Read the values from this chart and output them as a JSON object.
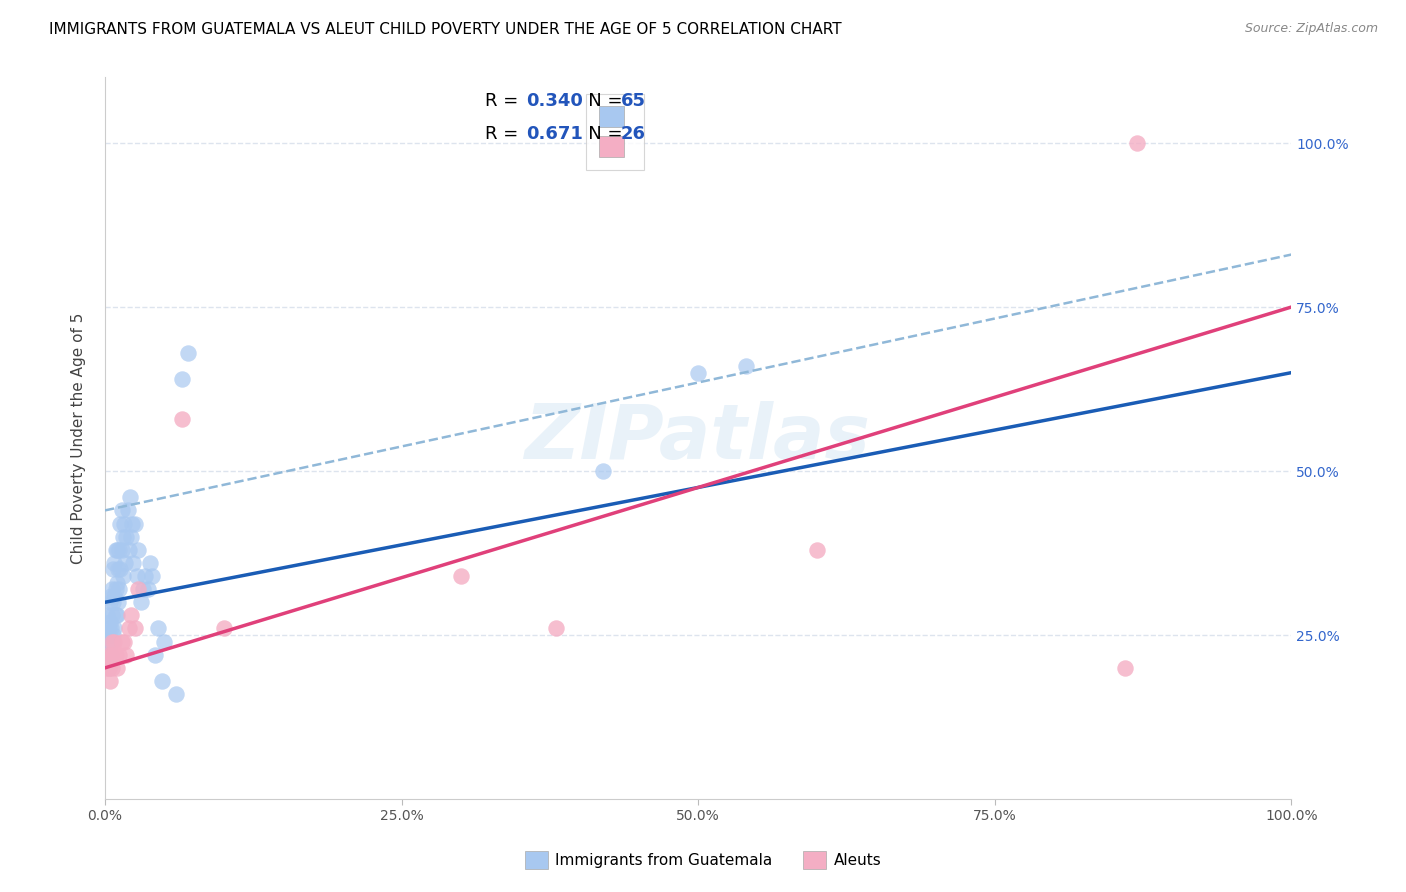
{
  "title": "IMMIGRANTS FROM GUATEMALA VS ALEUT CHILD POVERTY UNDER THE AGE OF 5 CORRELATION CHART",
  "source": "Source: ZipAtlas.com",
  "ylabel": "Child Poverty Under the Age of 5",
  "legend_label1": "Immigrants from Guatemala",
  "legend_label2": "Aleuts",
  "r1": 0.34,
  "n1": 65,
  "r2": 0.671,
  "n2": 26,
  "color_blue_scatter": "#a8c8f0",
  "color_pink_scatter": "#f4aec4",
  "color_blue_line": "#1a5cb5",
  "color_pink_line": "#e0407a",
  "color_dashed": "#90b8d8",
  "watermark": "ZIPatlas",
  "blue_x": [
    0.001,
    0.002,
    0.002,
    0.003,
    0.003,
    0.003,
    0.004,
    0.004,
    0.004,
    0.005,
    0.005,
    0.005,
    0.006,
    0.006,
    0.006,
    0.007,
    0.007,
    0.007,
    0.008,
    0.008,
    0.008,
    0.009,
    0.009,
    0.009,
    0.01,
    0.01,
    0.01,
    0.011,
    0.011,
    0.012,
    0.012,
    0.013,
    0.013,
    0.014,
    0.014,
    0.015,
    0.015,
    0.016,
    0.017,
    0.018,
    0.019,
    0.02,
    0.021,
    0.022,
    0.023,
    0.024,
    0.025,
    0.027,
    0.028,
    0.03,
    0.032,
    0.034,
    0.036,
    0.038,
    0.04,
    0.042,
    0.045,
    0.048,
    0.05,
    0.06,
    0.065,
    0.07,
    0.42,
    0.5,
    0.54
  ],
  "blue_y": [
    0.22,
    0.25,
    0.28,
    0.2,
    0.24,
    0.26,
    0.22,
    0.27,
    0.3,
    0.22,
    0.26,
    0.31,
    0.24,
    0.28,
    0.32,
    0.25,
    0.3,
    0.35,
    0.26,
    0.31,
    0.36,
    0.28,
    0.32,
    0.38,
    0.28,
    0.33,
    0.38,
    0.3,
    0.35,
    0.32,
    0.38,
    0.35,
    0.42,
    0.38,
    0.44,
    0.34,
    0.4,
    0.42,
    0.36,
    0.4,
    0.44,
    0.38,
    0.46,
    0.4,
    0.42,
    0.36,
    0.42,
    0.34,
    0.38,
    0.3,
    0.32,
    0.34,
    0.32,
    0.36,
    0.34,
    0.22,
    0.26,
    0.18,
    0.24,
    0.16,
    0.64,
    0.68,
    0.5,
    0.65,
    0.66
  ],
  "pink_x": [
    0.001,
    0.002,
    0.003,
    0.004,
    0.005,
    0.006,
    0.006,
    0.007,
    0.008,
    0.009,
    0.01,
    0.012,
    0.014,
    0.016,
    0.018,
    0.02,
    0.022,
    0.025,
    0.028,
    0.065,
    0.1,
    0.3,
    0.38,
    0.6,
    0.86,
    0.87
  ],
  "pink_y": [
    0.2,
    0.22,
    0.2,
    0.18,
    0.22,
    0.2,
    0.24,
    0.22,
    0.24,
    0.22,
    0.2,
    0.22,
    0.24,
    0.24,
    0.22,
    0.26,
    0.28,
    0.26,
    0.32,
    0.58,
    0.26,
    0.34,
    0.26,
    0.38,
    0.2,
    1.0
  ],
  "xlim": [
    0,
    1.0
  ],
  "ylim": [
    0,
    1.1
  ],
  "xticks": [
    0.0,
    0.25,
    0.5,
    0.75,
    1.0
  ],
  "xtick_labels": [
    "0.0%",
    "25.0%",
    "50.0%",
    "75.0%",
    "100.0%"
  ],
  "ytick_positions": [
    0.25,
    0.5,
    0.75,
    1.0
  ],
  "ytick_labels": [
    "25.0%",
    "50.0%",
    "75.0%",
    "100.0%"
  ],
  "grid_color": "#dde4ee",
  "blue_line_x0": 0.0,
  "blue_line_y0": 0.3,
  "blue_line_x1": 1.0,
  "blue_line_y1": 0.65,
  "pink_line_x0": 0.0,
  "pink_line_y0": 0.2,
  "pink_line_x1": 1.0,
  "pink_line_y1": 0.75,
  "dash_line_x0": 0.0,
  "dash_line_y0": 0.44,
  "dash_line_x1": 1.0,
  "dash_line_y1": 0.83
}
